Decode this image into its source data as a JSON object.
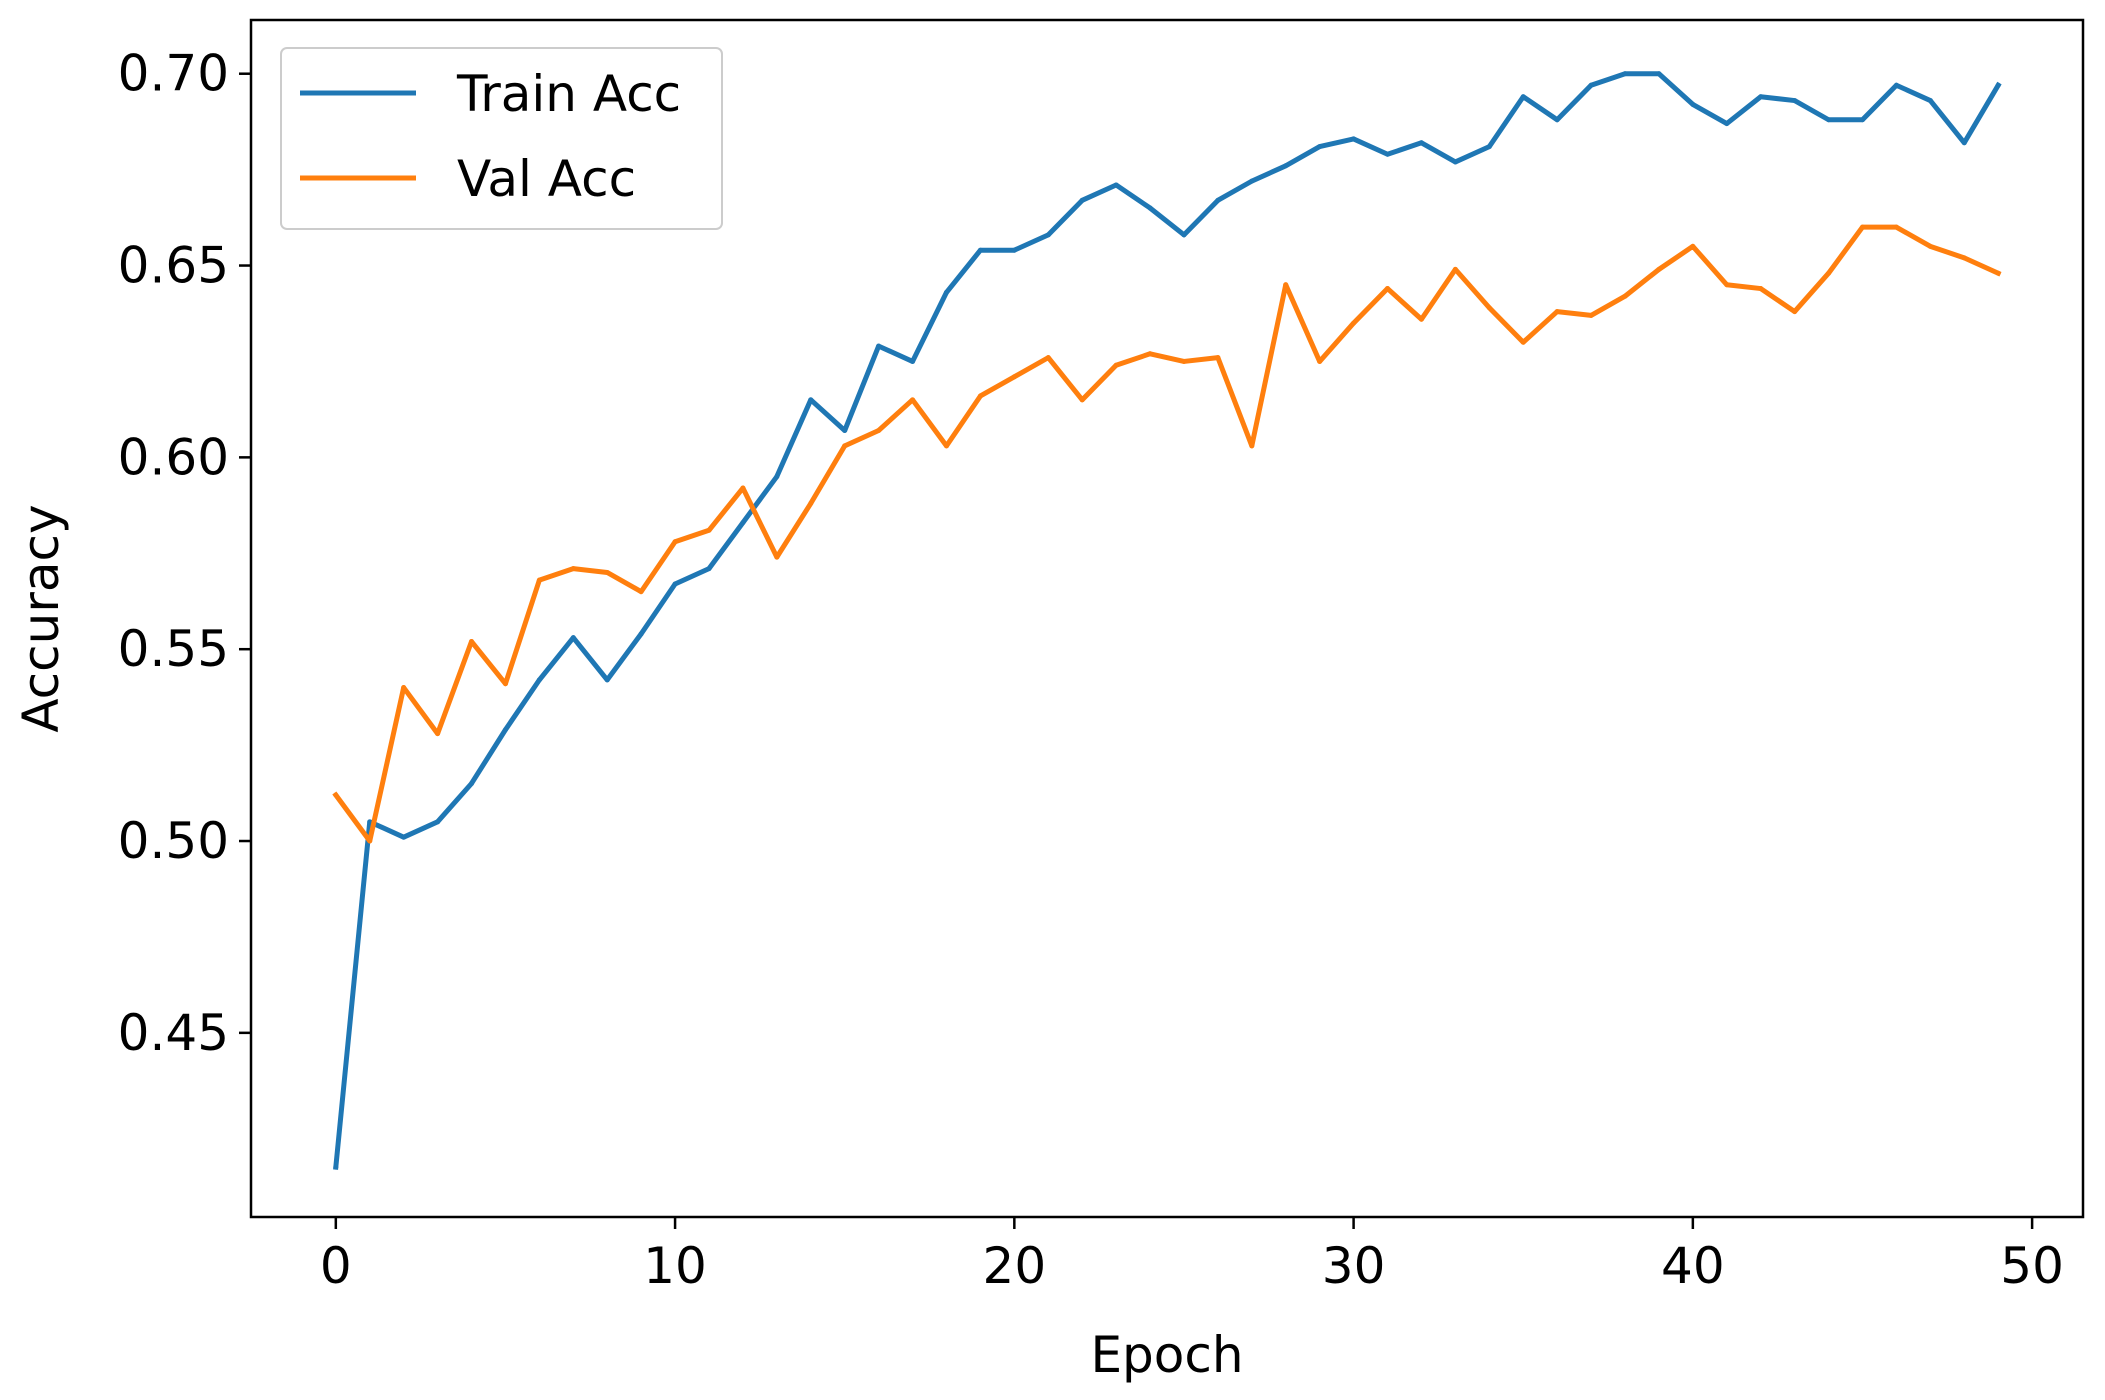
{
  "chart_data": {
    "type": "line",
    "title": "",
    "xlabel": "Epoch",
    "ylabel": "Accuracy",
    "xlim": [
      -2.5,
      51.5
    ],
    "ylim": [
      0.402,
      0.714
    ],
    "xticks": [
      0,
      10,
      20,
      30,
      40,
      50
    ],
    "yticks": [
      0.45,
      0.5,
      0.55,
      0.6,
      0.65,
      0.7
    ],
    "xtick_labels": [
      "0",
      "10",
      "20",
      "30",
      "40",
      "50"
    ],
    "ytick_labels": [
      "0.45",
      "0.50",
      "0.55",
      "0.60",
      "0.65",
      "0.70"
    ],
    "grid": false,
    "legend_position": "top-left",
    "x": [
      0,
      1,
      2,
      3,
      4,
      5,
      6,
      7,
      8,
      9,
      10,
      11,
      12,
      13,
      14,
      15,
      16,
      17,
      18,
      19,
      20,
      21,
      22,
      23,
      24,
      25,
      26,
      27,
      28,
      29,
      30,
      31,
      32,
      33,
      34,
      35,
      36,
      37,
      38,
      39,
      40,
      41,
      42,
      43,
      44,
      45,
      46,
      47,
      48,
      49
    ],
    "series": [
      {
        "name": "Train Acc",
        "color": "#1f77b4",
        "values": [
          0.415,
          0.505,
          0.501,
          0.505,
          0.515,
          0.529,
          0.542,
          0.553,
          0.542,
          0.554,
          0.567,
          0.571,
          0.583,
          0.595,
          0.615,
          0.607,
          0.629,
          0.625,
          0.643,
          0.654,
          0.654,
          0.658,
          0.667,
          0.671,
          0.665,
          0.658,
          0.667,
          0.672,
          0.676,
          0.681,
          0.683,
          0.679,
          0.682,
          0.677,
          0.681,
          0.694,
          0.688,
          0.697,
          0.7,
          0.7,
          0.692,
          0.687,
          0.694,
          0.693,
          0.688,
          0.688,
          0.697,
          0.693,
          0.682,
          0.697
        ]
      },
      {
        "name": "Val Acc",
        "color": "#ff7f0e",
        "values": [
          0.512,
          0.5,
          0.54,
          0.528,
          0.552,
          0.541,
          0.568,
          0.571,
          0.57,
          0.565,
          0.578,
          0.581,
          0.592,
          0.574,
          0.588,
          0.603,
          0.607,
          0.615,
          0.603,
          0.616,
          0.621,
          0.626,
          0.615,
          0.624,
          0.627,
          0.625,
          0.626,
          0.603,
          0.645,
          0.625,
          0.635,
          0.644,
          0.636,
          0.649,
          0.639,
          0.63,
          0.638,
          0.637,
          0.642,
          0.649,
          0.655,
          0.645,
          0.644,
          0.638,
          0.648,
          0.66,
          0.66,
          0.655,
          0.652,
          0.648
        ]
      }
    ]
  }
}
